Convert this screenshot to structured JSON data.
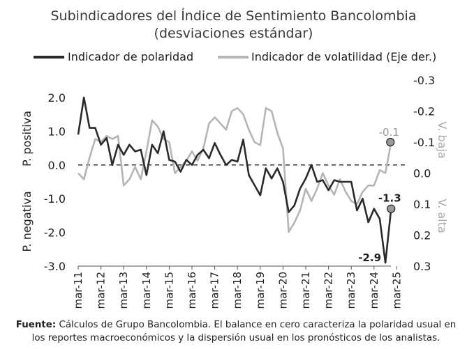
{
  "chart_data": {
    "type": "line",
    "title": "Subindicadores del Índice de Sentimiento Bancolombia",
    "subtitle": "(desviaciones estándar)",
    "series": [
      {
        "name": "Indicador de polaridad",
        "axis": "left",
        "color": "#2b2b2b",
        "values": [
          0.9,
          2.0,
          1.1,
          1.1,
          0.6,
          0.8,
          0.0,
          0.6,
          0.3,
          0.6,
          0.4,
          0.45,
          -0.3,
          0.6,
          0.35,
          1.0,
          0.15,
          0.1,
          -0.2,
          0.15,
          0.0,
          0.3,
          0.45,
          0.2,
          0.65,
          0.3,
          0.0,
          0.15,
          0.1,
          0.75,
          -0.3,
          -0.6,
          -0.9,
          -0.1,
          -0.4,
          -0.1,
          -0.5,
          -1.4,
          -1.2,
          -0.7,
          -0.4,
          0.0,
          -0.5,
          -0.45,
          -0.75,
          -0.45,
          -0.5,
          -0.5,
          -0.5,
          -1.35,
          -1.0,
          -1.7,
          -1.3,
          -1.6,
          -2.9,
          -1.3
        ]
      },
      {
        "name": "Indicador de volatilidad (Eje der.)",
        "axis": "right",
        "color": "#b5b5b5",
        "values": [
          0.0,
          0.02,
          -0.05,
          -0.11,
          -0.1,
          -0.12,
          -0.11,
          -0.12,
          0.04,
          0.02,
          -0.02,
          0.02,
          -0.07,
          -0.17,
          -0.15,
          -0.11,
          -0.1,
          0.0,
          -0.02,
          -0.04,
          -0.07,
          -0.04,
          -0.08,
          -0.16,
          -0.18,
          -0.16,
          -0.14,
          -0.2,
          -0.21,
          -0.19,
          -0.14,
          -0.1,
          -0.09,
          -0.21,
          -0.2,
          -0.13,
          -0.08,
          0.19,
          0.16,
          0.12,
          0.05,
          0.09,
          0.05,
          0.0,
          0.04,
          0.07,
          0.02,
          0.06,
          0.09,
          0.1,
          0.06,
          0.04,
          0.04,
          -0.01,
          0.0,
          -0.1
        ]
      }
    ],
    "x_tick_labels": [
      "mar-11",
      "mar-12",
      "mar-13",
      "mar-14",
      "mar-15",
      "mar-16",
      "mar-17",
      "mar-18",
      "mar-19",
      "mar-20",
      "mar-21",
      "mar-22",
      "mar-23",
      "mar-24",
      "mar-25"
    ],
    "ylim_left": [
      -3.0,
      2.0
    ],
    "ylim_right": [
      0.3,
      -0.3
    ],
    "left_tick_labels": [
      "2.0",
      "1.0",
      "0.0",
      "-1.0",
      "-2.0",
      "-3.0"
    ],
    "right_tick_labels": [
      "-0.3",
      "-0.2",
      "-0.1",
      "0.0",
      "0.1",
      "0.2",
      "0.3"
    ],
    "left_axis_labels": {
      "upper": "P. positiva",
      "lower": "P. negativa"
    },
    "right_axis_labels": {
      "upper": "V. baja",
      "lower": "V. alta"
    },
    "annotations": {
      "volatility_last": "-0.1",
      "polarity_last": "-1.3",
      "polarity_min": "-2.9"
    },
    "zero_line": "dashed",
    "legend": "top",
    "grid": false
  },
  "source": {
    "label": "Fuente:",
    "text": " Cálculos de Grupo Bancolombia. El balance en cero caracteriza la polaridad usual en los reportes macroeconómicos y la dispersión usual en los pronósticos de los analistas."
  }
}
